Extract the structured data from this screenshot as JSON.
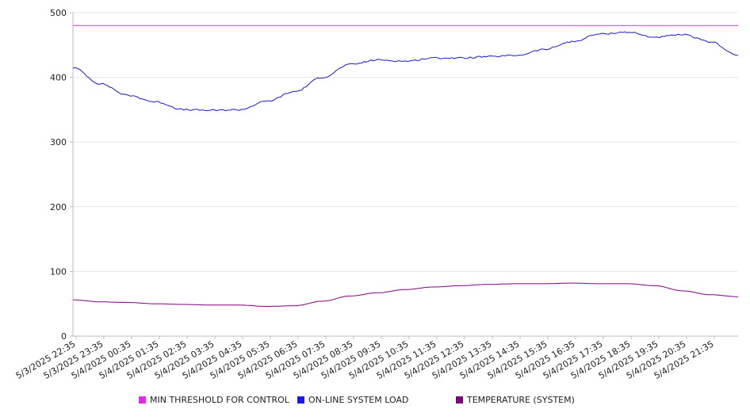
{
  "chart_data": {
    "type": "line",
    "title": "",
    "xlabel": "",
    "ylabel": "",
    "ylim": [
      0,
      500
    ],
    "yticks": [
      0,
      100,
      200,
      300,
      400,
      500
    ],
    "grid": true,
    "legend_position": "bottom",
    "x_tick_labels": [
      "5/3/2025 22:35",
      "5/3/2025 23:35",
      "5/4/2025 00:35",
      "5/4/2025 01:35",
      "5/4/2025 02:35",
      "5/4/2025 03:35",
      "5/4/2025 04:35",
      "5/4/2025 05:35",
      "5/4/2025 06:35",
      "5/4/2025 07:35",
      "5/4/2025 08:35",
      "5/4/2025 09:35",
      "5/4/2025 10:35",
      "5/4/2025 11:35",
      "5/4/2025 12:35",
      "5/4/2025 13:35",
      "5/4/2025 14:35",
      "5/4/2025 15:35",
      "5/4/2025 16:35",
      "5/4/2025 17:35",
      "5/4/2025 18:35",
      "5/4/2025 19:35",
      "5/4/2025 20:35",
      "5/4/2025 21:35"
    ],
    "x_hours": [
      0,
      1,
      2,
      3,
      4,
      5,
      6,
      7,
      8,
      9,
      10,
      11,
      12,
      13,
      14,
      15,
      16,
      17,
      18,
      19,
      20,
      21,
      22,
      23,
      24
    ],
    "series": [
      {
        "name": "MIN THRESHOLD FOR CONTROL",
        "color": "#cc33cc",
        "values": [
          480,
          480,
          480,
          480,
          480,
          480,
          480,
          480,
          480,
          480,
          480,
          480,
          480,
          480,
          480,
          480,
          480,
          480,
          480,
          480,
          480,
          480,
          480,
          480,
          480
        ]
      },
      {
        "name": "ON-LINE SYSTEM LOAD",
        "color": "#1a1acc",
        "values": [
          415,
          390,
          372,
          362,
          350,
          349,
          350,
          363,
          378,
          400,
          420,
          427,
          425,
          430,
          430,
          432,
          434,
          443,
          455,
          467,
          470,
          462,
          466,
          455,
          434
        ]
      },
      {
        "name": "TEMPERATURE (SYSTEM)",
        "color": "#800080",
        "values": [
          56,
          53,
          52,
          50,
          49,
          48,
          48,
          46,
          47,
          54,
          62,
          67,
          72,
          76,
          78,
          80,
          81,
          81,
          82,
          81,
          81,
          78,
          70,
          64,
          61
        ]
      }
    ],
    "legend": [
      {
        "label": "MIN THRESHOLD FOR CONTROL",
        "color": "#ee22ee"
      },
      {
        "label": "ON-LINE SYSTEM LOAD",
        "color": "#1a1aee"
      },
      {
        "label": "TEMPERATURE (SYSTEM)",
        "color": "#800080"
      }
    ]
  }
}
